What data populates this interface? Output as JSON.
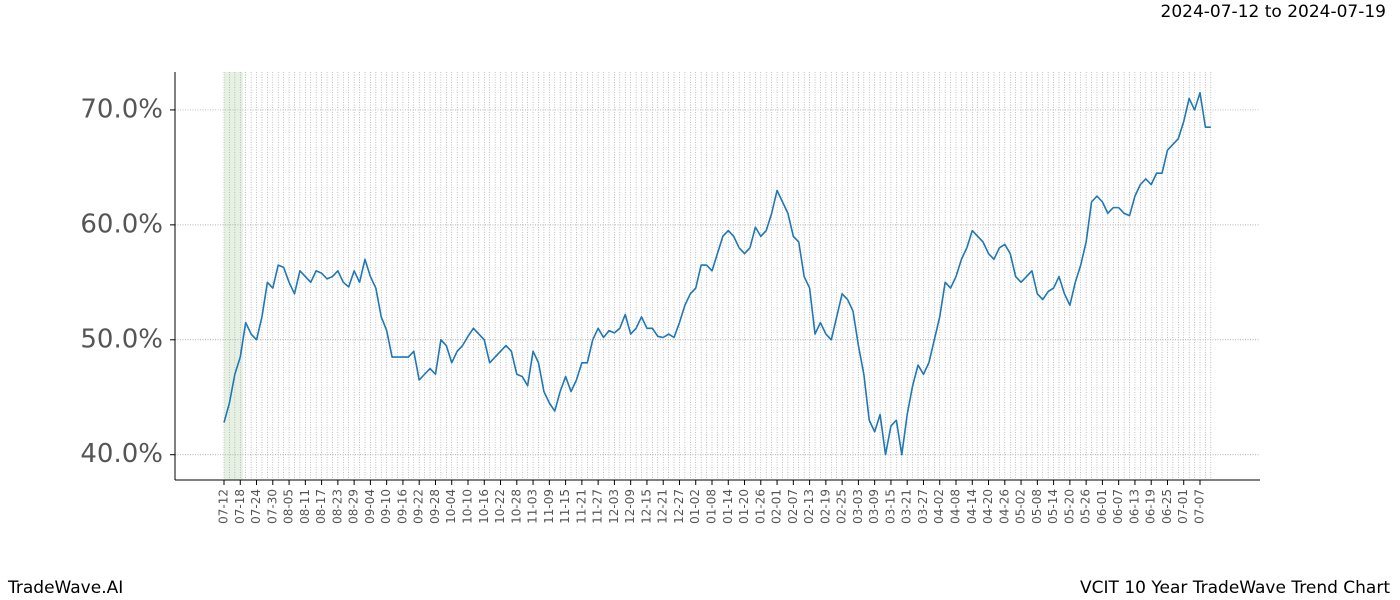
{
  "header": "2024-07-12 to 2024-07-19",
  "footer_left": "TradeWave.AI",
  "footer_right": "VCIT 10 Year TradeWave Trend Chart",
  "chart_data": {
    "type": "line",
    "categories": [
      "07-12",
      null,
      null,
      "07-18",
      null,
      null,
      "07-24",
      null,
      null,
      "07-30",
      null,
      null,
      "08-05",
      null,
      null,
      "08-11",
      null,
      null,
      "08-17",
      null,
      null,
      "08-23",
      null,
      null,
      "08-29",
      null,
      null,
      "09-04",
      null,
      null,
      "09-10",
      null,
      null,
      "09-16",
      null,
      null,
      "09-22",
      null,
      null,
      "09-28",
      null,
      null,
      "10-04",
      null,
      null,
      "10-10",
      null,
      null,
      "10-16",
      null,
      null,
      "10-22",
      null,
      null,
      "10-28",
      null,
      null,
      "11-03",
      null,
      null,
      "11-09",
      null,
      null,
      "11-15",
      null,
      null,
      "11-21",
      null,
      null,
      "11-27",
      null,
      null,
      "12-03",
      null,
      null,
      "12-09",
      null,
      null,
      "12-15",
      null,
      null,
      "12-21",
      null,
      null,
      "12-27",
      null,
      null,
      "01-02",
      null,
      null,
      "01-08",
      null,
      null,
      "01-14",
      null,
      null,
      "01-20",
      null,
      null,
      "01-26",
      null,
      null,
      "02-01",
      null,
      null,
      "02-07",
      null,
      null,
      "02-13",
      null,
      null,
      "02-19",
      null,
      null,
      "02-25",
      null,
      null,
      "03-03",
      null,
      null,
      "03-09",
      null,
      null,
      "03-15",
      null,
      null,
      "03-21",
      null,
      null,
      "03-27",
      null,
      null,
      "04-02",
      null,
      null,
      "04-08",
      null,
      null,
      "04-14",
      null,
      null,
      "04-20",
      null,
      null,
      "04-26",
      null,
      null,
      "05-02",
      null,
      null,
      "05-08",
      null,
      null,
      "05-14",
      null,
      null,
      "05-20",
      null,
      null,
      "05-26",
      null,
      null,
      "06-01",
      null,
      null,
      "06-07",
      null,
      null,
      "06-13",
      null,
      null,
      "06-19",
      null,
      null,
      "06-25",
      null,
      null,
      "07-01",
      null,
      null,
      "07-07",
      null,
      null
    ],
    "values": [
      42.8,
      44.5,
      47,
      48.5,
      51.5,
      50.5,
      50,
      52,
      55,
      54.5,
      56.5,
      56.3,
      55,
      54,
      56,
      55.5,
      55,
      56,
      55.8,
      55.3,
      55.5,
      56,
      55,
      54.6,
      56,
      55,
      57,
      55.5,
      54.5,
      52,
      50.8,
      48.5,
      48.5,
      48.5,
      48.5,
      49,
      46.5,
      47,
      47.5,
      47,
      50,
      49.5,
      48,
      49,
      49.5,
      50.3,
      51,
      50.5,
      50,
      48,
      48.5,
      49,
      49.5,
      49,
      47,
      46.8,
      46,
      49,
      48,
      45.5,
      44.5,
      43.8,
      45.5,
      46.8,
      45.5,
      46.5,
      48,
      48,
      50,
      51,
      50.2,
      50.8,
      50.6,
      51,
      52.2,
      50.5,
      51,
      52,
      51,
      51,
      50.3,
      50.2,
      50.5,
      50.2,
      51.5,
      53,
      54,
      54.5,
      56.5,
      56.5,
      56,
      57.5,
      59,
      59.5,
      59,
      58,
      57.5,
      58,
      59.8,
      59,
      59.5,
      61,
      63,
      62,
      61,
      59,
      58.5,
      55.5,
      54.5,
      50.5,
      51.5,
      50.5,
      50,
      52,
      54,
      53.5,
      52.5,
      49.5,
      47,
      43,
      42,
      43.5,
      40,
      42.5,
      43,
      40,
      43.5,
      46,
      47.8,
      47,
      48,
      50,
      52,
      55,
      54.5,
      55.5,
      57,
      58,
      59.5,
      59,
      58.5,
      57.5,
      57,
      58,
      58.3,
      57.5,
      55.5,
      55,
      55.5,
      56,
      54,
      53.5,
      54.2,
      54.5,
      55.5,
      54,
      53,
      55,
      56.5,
      58.5,
      62,
      62.5,
      62,
      61,
      61.5,
      61.5,
      61,
      60.8,
      62.5,
      63.5,
      64,
      63.5,
      64.5,
      64.5,
      66.5,
      67,
      67.5,
      69,
      71,
      70,
      71.5,
      68.5,
      68.5
    ],
    "color": "#1f77b4",
    "ylim": [
      37.8,
      73.3
    ],
    "yticks": [
      {
        "value": 40,
        "label": "40.0%"
      },
      {
        "value": 50,
        "label": "50.0%"
      },
      {
        "value": 60,
        "label": "60.0%"
      },
      {
        "value": 70,
        "label": "70.0%"
      }
    ],
    "grid": true
  }
}
